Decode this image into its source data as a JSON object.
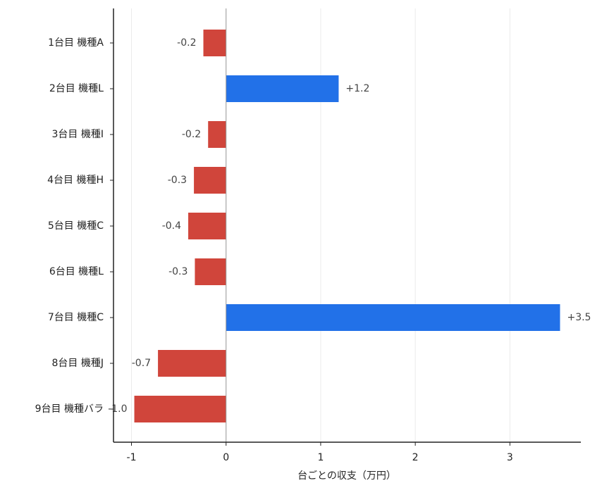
{
  "chart_data": {
    "type": "barh",
    "categories": [
      "1台目 機種A",
      "2台目 機種L",
      "3台目 機種I",
      "4台目 機種H",
      "5台目 機種C",
      "6台目 機種L",
      "7台目 機種C",
      "8台目 機種J",
      "9台目 機種バラ"
    ],
    "values": [
      -0.24,
      1.19,
      -0.19,
      -0.34,
      -0.4,
      -0.33,
      3.53,
      -0.72,
      -0.97
    ],
    "value_labels": [
      "-0.2",
      "+1.2",
      "-0.2",
      "-0.3",
      "-0.4",
      "-0.3",
      "+3.5",
      "-0.7",
      "-1.0"
    ],
    "positive_color": "#2271e8",
    "negative_color": "#d0453b",
    "xlabel": "台ごとの収支（万円）",
    "xlim": [
      -1.19,
      3.75
    ],
    "xticks": [
      -1,
      0,
      1,
      2,
      3
    ],
    "grid": true
  }
}
